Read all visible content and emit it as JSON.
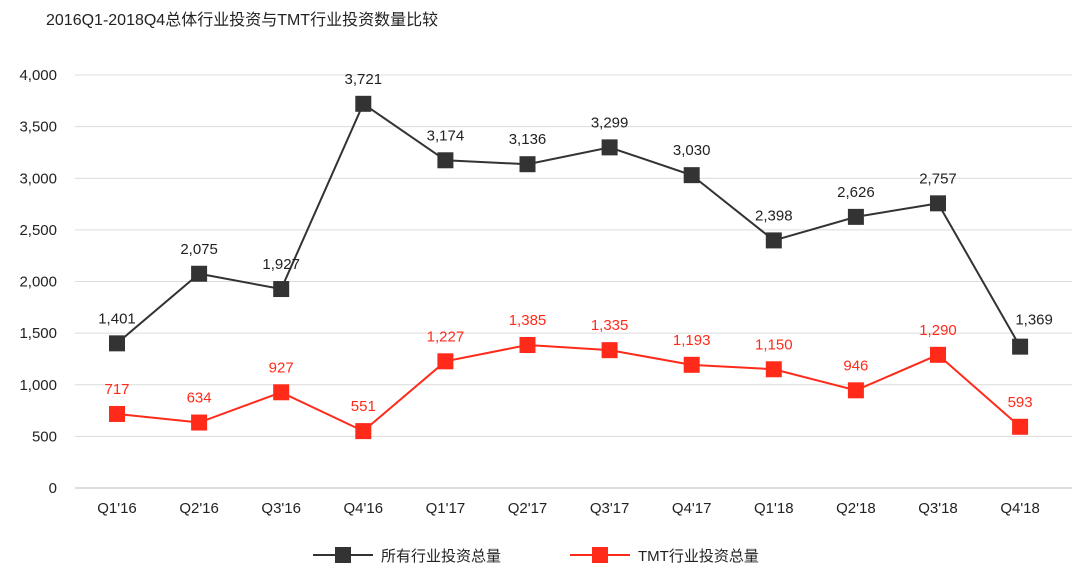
{
  "chart_data": {
    "type": "line",
    "title": "2016Q1-2018Q4总体行业投资与TMT行业投资数量比较",
    "xlabel": "",
    "ylabel": "",
    "categories": [
      "Q1'16",
      "Q2'16",
      "Q3'16",
      "Q4'16",
      "Q1'17",
      "Q2'17",
      "Q3'17",
      "Q4'17",
      "Q1'18",
      "Q2'18",
      "Q3'18",
      "Q4'18"
    ],
    "ylim": [
      0,
      4000
    ],
    "yticks": [
      0,
      500,
      1000,
      1500,
      2000,
      2500,
      3000,
      3500,
      4000
    ],
    "ytick_labels": [
      "0",
      "500",
      "1,000",
      "1,500",
      "2,000",
      "2,500",
      "3,000",
      "3,500",
      "4,000"
    ],
    "grid": true,
    "legend_position": "bottom",
    "series": [
      {
        "name": "所有行业投资总量",
        "color": "#333333",
        "marker": "square",
        "values": [
          1401,
          2075,
          1927,
          3721,
          3174,
          3136,
          3299,
          3030,
          2398,
          2626,
          2757,
          1369
        ],
        "labels": [
          "1,401",
          "2,075",
          "1,927",
          "3,721",
          "3,174",
          "3,136",
          "3,299",
          "3,030",
          "2,398",
          "2,626",
          "2,757",
          "1,369"
        ]
      },
      {
        "name": "TMT行业投资总量",
        "color": "#ff2a1a",
        "marker": "square",
        "values": [
          717,
          634,
          927,
          551,
          1227,
          1385,
          1335,
          1193,
          1150,
          946,
          1290,
          593
        ],
        "labels": [
          "717",
          "634",
          "927",
          "551",
          "1,227",
          "1,385",
          "1,335",
          "1,193",
          "1,150",
          "946",
          "1,290",
          "593"
        ]
      }
    ]
  }
}
